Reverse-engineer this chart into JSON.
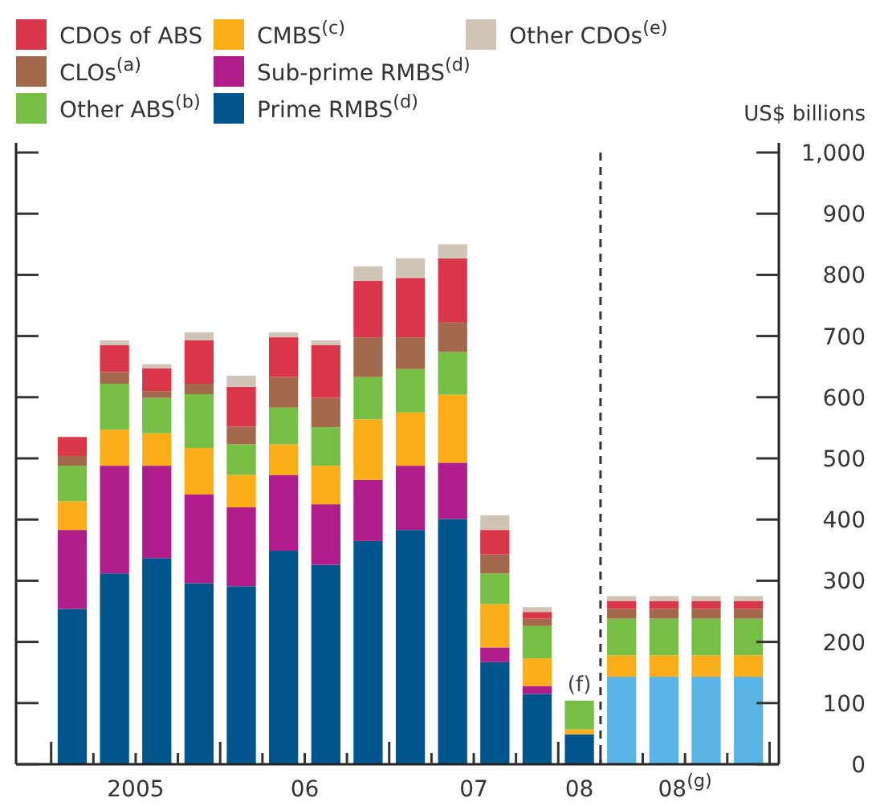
{
  "chart_data": {
    "type": "bar",
    "stacked": true,
    "ylabel": "US$ billions",
    "categories": [
      null,
      null,
      null,
      null,
      null,
      null,
      null,
      null,
      null,
      null,
      null,
      null,
      null,
      null,
      null,
      null,
      null
    ],
    "ylim": [
      0,
      1000
    ],
    "yticks": [
      0,
      100,
      200,
      300,
      400,
      500,
      600,
      700,
      800,
      900,
      {
        "value": 1000,
        "label": "1,000"
      }
    ],
    "legend": "top",
    "annotations": [
      "2005",
      "06",
      "07",
      "08",
      "08$^{(g)}$",
      {
        "text": "(f)",
        "y": 104
      }
    ],
    "series": [
      {
        "name": "Prime RMBS$^{(d)}$",
        "color": "#00568c",
        "colors": [
          "#00568c",
          "#00568c",
          "#00568c",
          "#00568c",
          "#00568c",
          "#00568c",
          "#00568c",
          "#00568c",
          "#00568c",
          "#00568c",
          "#00568c",
          "#00568c",
          "#00568c",
          "#5ab4e5",
          "#5ab4e5",
          "#5ab4e5",
          "#5ab4e5"
        ],
        "values": [
          254,
          312,
          337,
          296,
          291,
          349,
          326,
          365,
          383,
          401,
          167,
          115,
          49,
          143,
          143,
          143,
          143
        ]
      },
      {
        "name": "Sub-prime RMBS$^{(d)}$",
        "color": "#b01d8a",
        "values": [
          129,
          176,
          151,
          145,
          129,
          124,
          99,
          100,
          105,
          92,
          24,
          13,
          0,
          0,
          0,
          0,
          0
        ]
      },
      {
        "name": "CMBS$^{(c)}$",
        "color": "#fbae17",
        "values": [
          47,
          59,
          53,
          76,
          53,
          50,
          63,
          99,
          87,
          111,
          71,
          45,
          8,
          35,
          35,
          35,
          35
        ]
      },
      {
        "name": "Other ABS$^{(b)}$",
        "color": "#77bf44",
        "values": [
          58,
          75,
          58,
          88,
          50,
          60,
          63,
          69,
          71,
          70,
          50,
          53,
          47,
          60,
          60,
          60,
          60
        ]
      },
      {
        "name": "CLOs$^{(a)}$",
        "color": "#a2694a",
        "values": [
          16,
          19,
          11,
          17,
          29,
          50,
          48,
          65,
          52,
          48,
          31,
          12,
          0,
          16,
          16,
          16,
          16
        ]
      },
      {
        "name": "CDOs of ABS",
        "color": "#d9364a",
        "values": [
          31,
          44,
          37,
          71,
          65,
          65,
          86,
          92,
          97,
          105,
          40,
          11,
          0,
          13,
          13,
          13,
          13
        ]
      },
      {
        "name": "Other CDOs$^{(e)}$",
        "color": "#d0c4b7",
        "values": [
          0,
          8,
          7,
          13,
          18,
          8,
          8,
          24,
          32,
          23,
          24,
          8,
          0,
          8,
          8,
          8,
          8
        ]
      }
    ]
  }
}
